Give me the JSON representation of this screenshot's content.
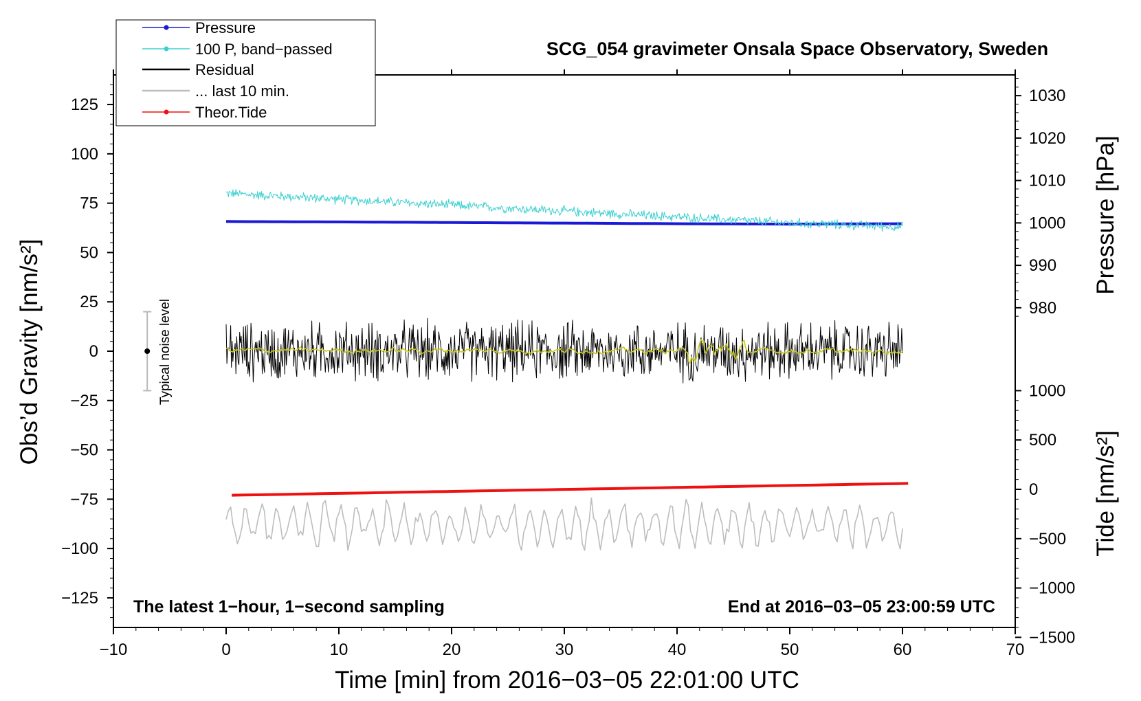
{
  "chart_data": {
    "type": "line",
    "title": "SCG_054 gravimeter Onsala Space Observatory, Sweden",
    "xlabel": "Time [min] from 2016−03−05 22:01:00 UTC",
    "ylabel_left": "Obs’d Gravity [nm/s²]",
    "ylabel_pressure": "Pressure [hPa]",
    "ylabel_tide": "Tide [nm/s²]",
    "xlim": [
      -10,
      70
    ],
    "ylim_left": [
      -140,
      140
    ],
    "x_ticks": [
      -10,
      0,
      10,
      20,
      30,
      40,
      50,
      60,
      70
    ],
    "x_tick_labels": [
      "−10",
      "0",
      "10",
      "20",
      "30",
      "40",
      "50",
      "60",
      "70"
    ],
    "y_left_ticks": [
      125,
      100,
      75,
      50,
      25,
      0,
      -25,
      -50,
      -75,
      -100,
      -125
    ],
    "y_left_tick_labels": [
      "125",
      "100",
      "75",
      "50",
      "25",
      "0",
      "−25",
      "−50",
      "−75",
      "−100",
      "−125"
    ],
    "pressure_axis": {
      "ticks": [
        1030,
        1020,
        1010,
        1000,
        990,
        980
      ],
      "tick_labels": [
        "1030",
        "1020",
        "1010",
        "1000",
        "990",
        "980"
      ],
      "left_equiv_at_1000": 65,
      "units_per_hpa": 2.15
    },
    "tide_axis": {
      "ticks": [
        1000,
        500,
        0,
        -500,
        -1000,
        -1500
      ],
      "tick_labels": [
        "1000",
        "500",
        "0",
        "−500",
        "−1000",
        "−1500"
      ],
      "left_equiv_at_0": -70,
      "units_per_nms2": 0.05
    },
    "legend": {
      "position": "top-left",
      "entries": [
        {
          "label": "Pressure",
          "color": "#1a1ad6",
          "marker": "dot"
        },
        {
          "label": "100 P, band−passed",
          "color": "#3dd0d0",
          "marker": "dot"
        },
        {
          "label": "Residual",
          "color": "#000000",
          "marker": "none"
        },
        {
          "label": "... last 10 min.",
          "color": "#bdbdbd",
          "marker": "none"
        },
        {
          "label": "Theor.Tide",
          "color": "#ee1111",
          "marker": "dot"
        }
      ]
    },
    "series": [
      {
        "name": "Pressure",
        "axis": "left",
        "color": "#1a1ad6",
        "x": [
          0,
          10,
          20,
          30,
          40,
          50,
          60
        ],
        "values": [
          65.7,
          65.5,
          65.2,
          64.9,
          64.6,
          64.4,
          64.6
        ]
      },
      {
        "name": "100 P, band−passed",
        "axis": "left",
        "color": "#3dd0d0",
        "x": [
          0,
          10,
          20,
          30,
          40,
          50,
          60
        ],
        "values": [
          80,
          77,
          74,
          71,
          68,
          65,
          63
        ],
        "noise_amplitude": 3
      },
      {
        "name": "Residual",
        "axis": "left",
        "color": "#000000",
        "x": [
          0,
          60
        ],
        "values": [
          0,
          0
        ],
        "noise_amplitude": 18
      },
      {
        "name": "Residual (smoothed)",
        "axis": "left",
        "color": "#c8c820",
        "x": [
          0,
          60
        ],
        "values": [
          0.5,
          0
        ],
        "noise_amplitude": 2
      },
      {
        "name": "... last 10 min.",
        "axis": "left",
        "color": "#bdbdbd",
        "x": [
          0,
          60
        ],
        "values": [
          -88,
          -88
        ],
        "noise_amplitude": 12
      },
      {
        "name": "Theor.Tide",
        "axis": "tide",
        "color": "#ee1111",
        "x": [
          0.5,
          60.5
        ],
        "values": [
          -60,
          60
        ]
      }
    ],
    "noise_bar": {
      "label": "Typical noise level",
      "x": -7,
      "center": 0,
      "low": -20,
      "high": 20
    },
    "annotations": {
      "bottom_left": "The latest 1−hour, 1−second sampling",
      "bottom_right": "End at 2016−03−05 23:00:59 UTC"
    }
  }
}
